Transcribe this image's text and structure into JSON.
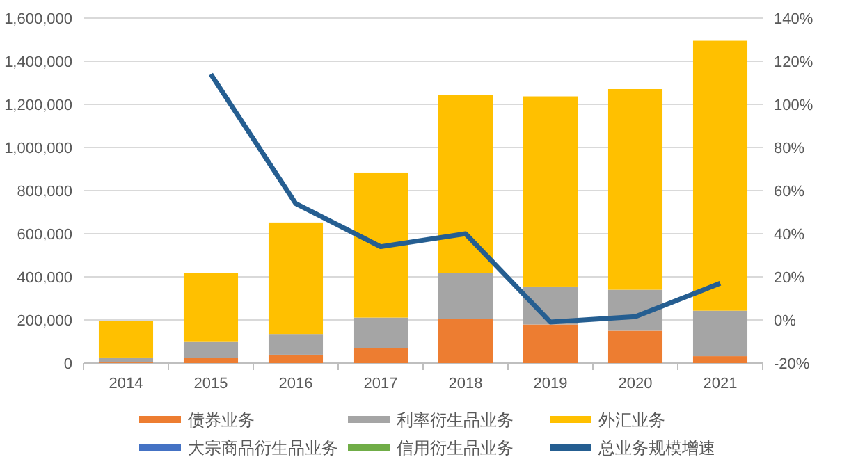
{
  "chart_data": {
    "type": "bar",
    "stacked": true,
    "grid": "y",
    "legend": "bottom",
    "marker": "none",
    "categories": [
      "2014",
      "2015",
      "2016",
      "2017",
      "2018",
      "2019",
      "2020",
      "2021"
    ],
    "ylim": [
      0,
      1600000
    ],
    "yticks": [
      {
        "value": 0,
        "label": "0"
      },
      {
        "value": 200000,
        "label": "200,000"
      },
      {
        "value": 400000,
        "label": "400,000"
      },
      {
        "value": 600000,
        "label": "600,000"
      },
      {
        "value": 800000,
        "label": "800,000"
      },
      {
        "value": 1000000,
        "label": "1,000,000"
      },
      {
        "value": 1200000,
        "label": "1,200,000"
      },
      {
        "value": 1400000,
        "label": "1,400,000"
      },
      {
        "value": 1600000,
        "label": "1,600,000"
      }
    ],
    "y2lim": [
      -20,
      140
    ],
    "y2ticks": [
      {
        "value": -20,
        "label": "-20%"
      },
      {
        "value": 0,
        "label": "0%"
      },
      {
        "value": 20,
        "label": "20%"
      },
      {
        "value": 40,
        "label": "40%"
      },
      {
        "value": 60,
        "label": "60%"
      },
      {
        "value": 80,
        "label": "80%"
      },
      {
        "value": 100,
        "label": "100%"
      },
      {
        "value": 120,
        "label": "120%"
      },
      {
        "value": 140,
        "label": "140%"
      }
    ],
    "series": [
      {
        "name": "债券业务",
        "color": "#ed7d31",
        "values": [
          3000,
          24000,
          39000,
          71000,
          206000,
          179000,
          150000,
          32000
        ]
      },
      {
        "name": "利率衍生品业务",
        "color": "#a5a5a5",
        "values": [
          23000,
          77000,
          96000,
          140000,
          213000,
          176000,
          190000,
          211000
        ]
      },
      {
        "name": "外汇业务",
        "color": "#ffc000",
        "values": [
          169000,
          318000,
          517000,
          673000,
          824000,
          882000,
          931000,
          1252000
        ]
      },
      {
        "name": "大宗商品衍生品业务",
        "color": "#4472c4",
        "values": [
          0,
          0,
          0,
          0,
          0,
          0,
          0,
          0
        ]
      },
      {
        "name": "信用衍生品业务",
        "color": "#70ad47",
        "values": [
          0,
          0,
          0,
          0,
          0,
          0,
          0,
          0
        ]
      },
      {
        "name": "总业务规模增速",
        "color": "#255e91",
        "type": "line",
        "axis": "y2",
        "values": [
          null,
          114,
          54,
          34,
          40,
          -1,
          1.5,
          17
        ]
      }
    ]
  }
}
